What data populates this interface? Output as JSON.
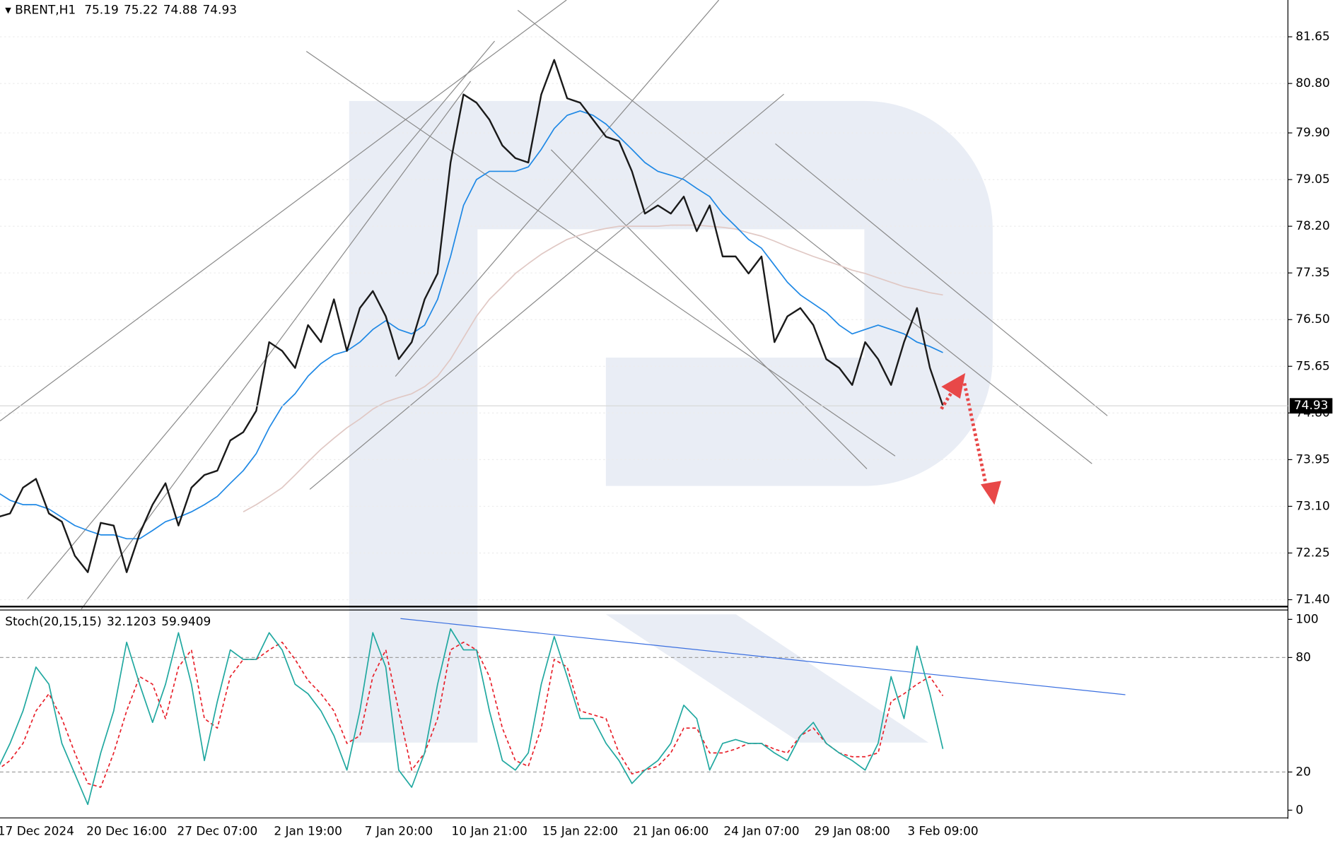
{
  "chart_data": [
    {
      "type": "line",
      "symbol": "BRENT,H1",
      "ohlc": [
        75.19,
        75.22,
        74.88,
        74.93
      ],
      "last_price": 74.93,
      "series": [
        {
          "color": "#1a1a1a",
          "values": [
            72.9,
            72.97,
            73.44,
            73.6,
            72.97,
            72.82,
            72.2,
            71.9,
            72.8,
            72.75,
            71.9,
            72.6,
            73.13,
            73.52,
            72.75,
            73.44,
            73.67,
            73.75,
            74.3,
            74.45,
            74.84,
            76.09,
            75.93,
            75.62,
            76.4,
            76.09,
            76.87,
            75.93,
            76.71,
            77.02,
            76.56,
            75.78,
            76.09,
            76.87,
            77.34,
            79.36,
            80.6,
            80.45,
            80.14,
            79.67,
            79.44,
            79.36,
            80.6,
            81.23,
            80.53,
            80.45,
            80.14,
            79.83,
            79.75,
            79.2,
            78.43,
            78.58,
            78.43,
            78.74,
            78.11,
            78.58,
            77.65,
            77.65,
            77.34,
            77.65,
            76.09,
            76.56,
            76.71,
            76.4,
            75.78,
            75.62,
            75.31,
            76.09,
            75.78,
            75.31,
            76.09,
            76.71,
            75.62,
            74.93
          ]
        },
        {
          "color": "#1e88e5",
          "values": [
            73.36,
            73.21,
            73.13,
            73.13,
            73.05,
            72.9,
            72.75,
            72.66,
            72.58,
            72.58,
            72.51,
            72.51,
            72.66,
            72.82,
            72.9,
            73.0,
            73.13,
            73.28,
            73.52,
            73.75,
            74.06,
            74.53,
            74.92,
            75.15,
            75.47,
            75.7,
            75.86,
            75.93,
            76.09,
            76.32,
            76.48,
            76.32,
            76.24,
            76.4,
            76.87,
            77.65,
            78.58,
            79.05,
            79.2,
            79.2,
            79.2,
            79.28,
            79.6,
            79.98,
            80.22,
            80.3,
            80.22,
            80.06,
            79.83,
            79.6,
            79.36,
            79.2,
            79.13,
            79.05,
            78.89,
            78.74,
            78.43,
            78.2,
            77.96,
            77.8,
            77.49,
            77.18,
            76.95,
            76.79,
            76.63,
            76.4,
            76.24,
            76.32,
            76.4,
            76.32,
            76.24,
            76.09,
            76.01,
            75.9
          ]
        },
        {
          "color": "#e0c8c4",
          "values": [
            null,
            null,
            null,
            null,
            null,
            null,
            null,
            null,
            null,
            null,
            null,
            null,
            null,
            null,
            null,
            null,
            null,
            null,
            null,
            73.0,
            73.13,
            73.28,
            73.44,
            73.67,
            73.91,
            74.14,
            74.34,
            74.53,
            74.69,
            74.87,
            75.0,
            75.08,
            75.15,
            75.28,
            75.47,
            75.78,
            76.17,
            76.56,
            76.87,
            77.1,
            77.34,
            77.52,
            77.69,
            77.83,
            77.96,
            78.04,
            78.11,
            78.16,
            78.2,
            78.2,
            78.2,
            78.2,
            78.22,
            78.22,
            78.22,
            78.2,
            78.18,
            78.15,
            78.08,
            78.02,
            77.93,
            77.83,
            77.74,
            77.65,
            77.57,
            77.49,
            77.4,
            77.34,
            77.26,
            77.18,
            77.1,
            77.05,
            76.99,
            76.95
          ]
        }
      ],
      "ylim": [
        71.29,
        82.32
      ],
      "yticks": [
        {
          "value": 71.4,
          "label": "71.40"
        },
        72.25,
        {
          "value": 73.1,
          "label": "73.10"
        },
        73.95,
        {
          "value": 74.8,
          "label": "74.80"
        },
        75.65,
        {
          "value": 76.5,
          "label": "76.50"
        },
        77.35,
        {
          "value": 78.2,
          "label": "78.20"
        },
        79.05,
        {
          "value": 79.9,
          "label": "79.90"
        },
        {
          "value": 80.8,
          "label": "80.80"
        },
        81.65
      ],
      "grid": true
    },
    {
      "type": "line",
      "title": "Stoch(20,15,15)",
      "indicator_values": [
        32.1203,
        59.9409
      ],
      "categories": [
        null,
        null,
        null,
        "17 Dec 2024",
        null,
        null,
        null,
        null,
        null,
        null,
        "20 Dec 16:00",
        null,
        null,
        null,
        null,
        null,
        null,
        "27 Dec 07:00",
        null,
        null,
        null,
        null,
        null,
        null,
        "2 Jan 19:00",
        null,
        null,
        null,
        null,
        null,
        null,
        "7 Jan 20:00",
        null,
        null,
        null,
        null,
        null,
        null,
        "10 Jan 21:00",
        null,
        null,
        null,
        null,
        null,
        null,
        "15 Jan 22:00",
        null,
        null,
        null,
        null,
        null,
        null,
        "21 Jan 06:00",
        null,
        null,
        null,
        null,
        null,
        null,
        "24 Jan 07:00",
        null,
        null,
        null,
        null,
        null,
        null,
        "29 Jan 08:00",
        null,
        null,
        null,
        null,
        null,
        null,
        "3 Feb 09:00"
      ],
      "series": [
        {
          "color": "#20a8a0",
          "values": [
            21,
            35,
            52,
            75,
            66,
            35,
            19,
            3,
            30,
            52,
            88,
            66,
            46,
            66,
            93,
            66,
            26,
            57,
            84,
            79,
            79,
            93,
            84,
            66,
            61,
            52,
            39,
            21,
            52,
            93,
            75,
            21,
            12,
            30,
            66,
            95,
            84,
            84,
            52,
            26,
            21,
            30,
            66,
            91,
            70,
            48,
            48,
            35,
            26,
            14,
            21,
            26,
            35,
            55,
            48,
            21,
            35,
            37,
            35,
            35,
            30,
            26,
            39,
            46,
            35,
            30,
            26,
            21,
            35,
            70,
            48,
            86,
            61,
            32.1
          ]
        },
        {
          "color": "#e8202a",
          "dashed": true,
          "values": [
            21,
            26,
            35,
            52,
            61,
            48,
            30,
            14,
            12,
            30,
            52,
            70,
            66,
            48,
            75,
            84,
            48,
            43,
            70,
            79,
            79,
            84,
            88,
            79,
            68,
            61,
            52,
            35,
            39,
            70,
            84,
            52,
            21,
            30,
            48,
            84,
            88,
            84,
            70,
            43,
            26,
            23,
            43,
            79,
            75,
            52,
            50,
            48,
            30,
            19,
            21,
            23,
            30,
            43,
            43,
            30,
            30,
            32,
            35,
            35,
            32,
            30,
            39,
            43,
            35,
            30,
            28,
            28,
            30,
            57,
            61,
            66,
            70,
            59.9
          ]
        }
      ],
      "ylim": [
        -3.6,
        104.9
      ],
      "yticks": [
        0,
        20,
        80,
        100
      ],
      "levels": [
        20,
        80
      ]
    }
  ]
}
